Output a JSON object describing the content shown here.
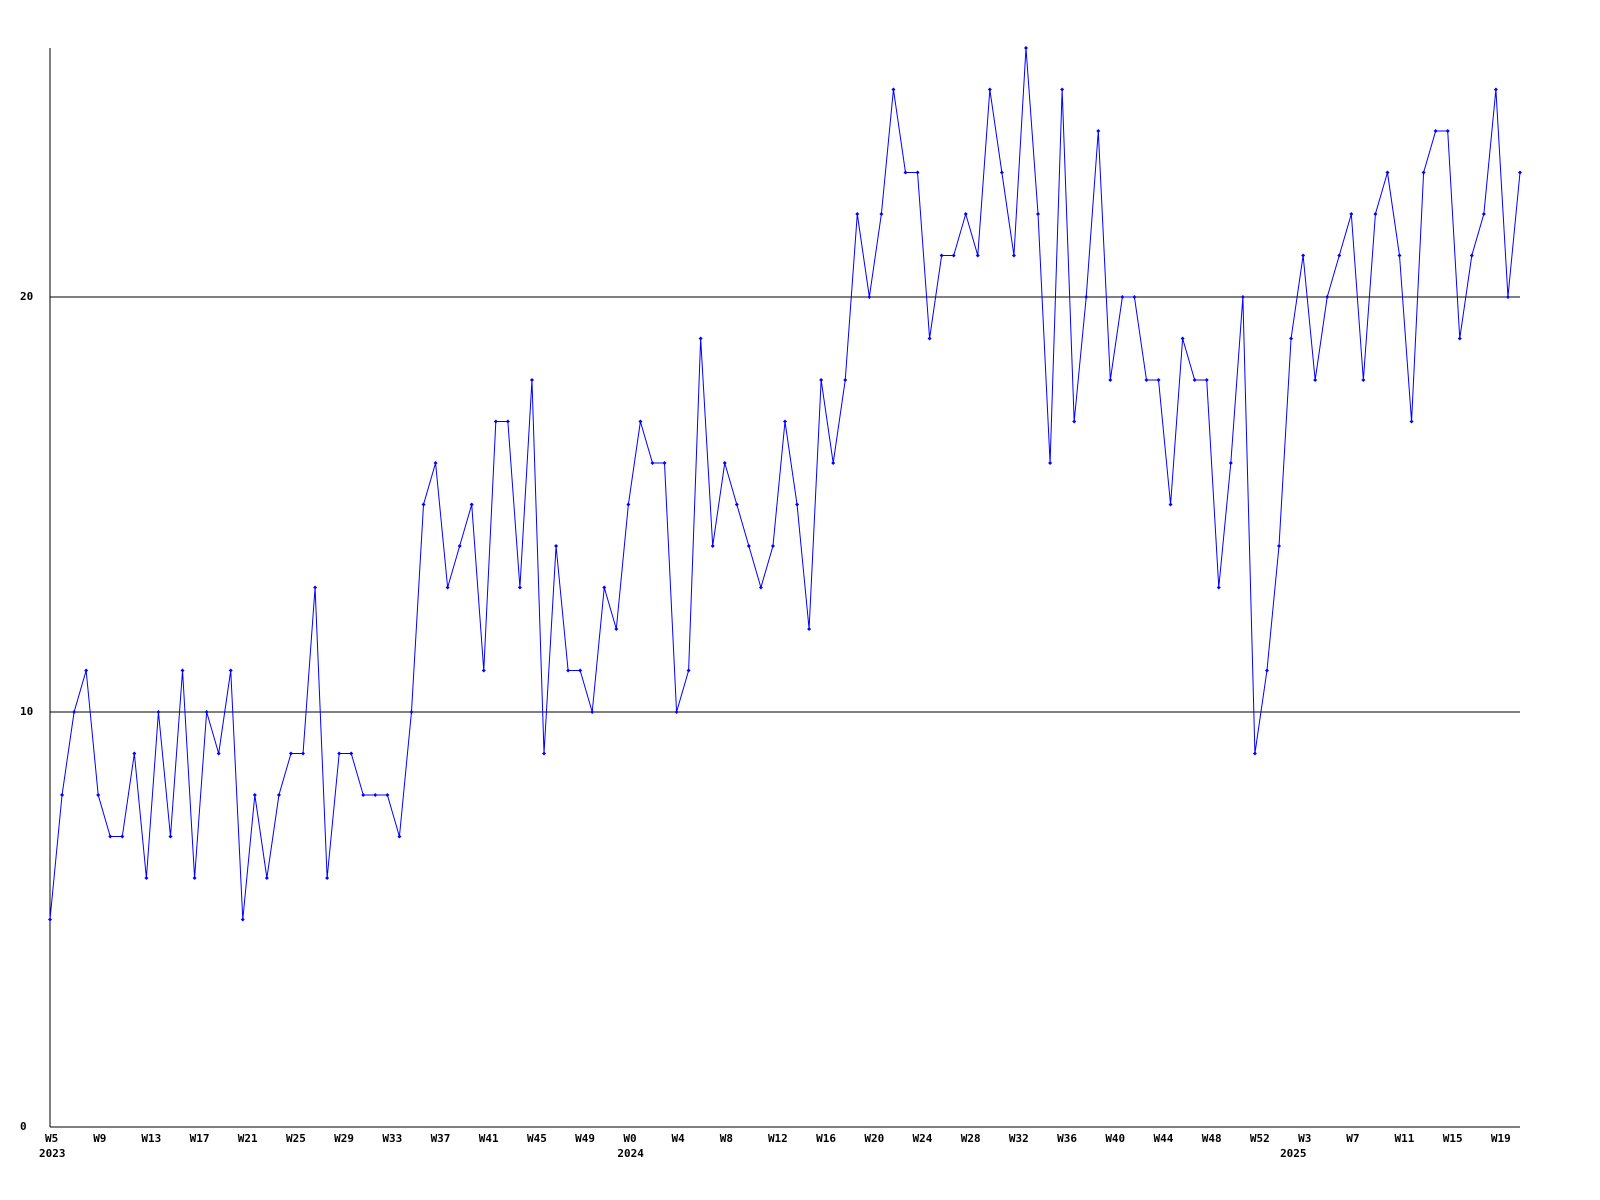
{
  "chart_data": {
    "type": "line",
    "categories": [
      "W5",
      null,
      null,
      null,
      "W9",
      null,
      null,
      null,
      "W13",
      null,
      null,
      null,
      "W17",
      null,
      null,
      null,
      "W21",
      null,
      null,
      null,
      "W25",
      null,
      null,
      null,
      "W29",
      null,
      null,
      null,
      "W33",
      null,
      null,
      null,
      "W37",
      null,
      null,
      null,
      "W41",
      null,
      null,
      null,
      "W45",
      null,
      null,
      null,
      "W49",
      null,
      null,
      null,
      "W0",
      null,
      null,
      null,
      "W4",
      null,
      null,
      null,
      "W8",
      null,
      null,
      null,
      "W12",
      null,
      null,
      null,
      "W16",
      null,
      null,
      null,
      "W20",
      null,
      null,
      null,
      "W24",
      null,
      null,
      null,
      "W28",
      null,
      null,
      null,
      "W32",
      null,
      null,
      null,
      "W36",
      null,
      null,
      null,
      "W40",
      null,
      null,
      null,
      "W44",
      null,
      null,
      null,
      "W48",
      null,
      null,
      null,
      "W52",
      null,
      null,
      null,
      "W3",
      null,
      null,
      null,
      "W7",
      null,
      null,
      null,
      "W11",
      null,
      null,
      null,
      "W15",
      null,
      null,
      null,
      "W19",
      null,
      null
    ],
    "year_labels": [
      "2023",
      null,
      null,
      null,
      null,
      null,
      null,
      null,
      null,
      null,
      null,
      null,
      null,
      null,
      null,
      null,
      null,
      null,
      null,
      null,
      null,
      null,
      null,
      null,
      null,
      null,
      null,
      null,
      null,
      null,
      null,
      null,
      null,
      null,
      null,
      null,
      null,
      null,
      null,
      null,
      null,
      null,
      null,
      null,
      null,
      null,
      null,
      null,
      "2024",
      null,
      null,
      null,
      null,
      null,
      null,
      null,
      null,
      null,
      null,
      null,
      null,
      null,
      null,
      null,
      null,
      null,
      null,
      null,
      null,
      null,
      null,
      null,
      null,
      null,
      null,
      null,
      null,
      null,
      null,
      null,
      null,
      null,
      null,
      null,
      null,
      null,
      null,
      null,
      null,
      null,
      null,
      null,
      null,
      null,
      null,
      null,
      null,
      null,
      null,
      null,
      null,
      null,
      null,
      "2025",
      null,
      null,
      null,
      null,
      null,
      null,
      null,
      null,
      null,
      null,
      null,
      null,
      null,
      null,
      null,
      null,
      null,
      null,
      null,
      null,
      null
    ],
    "series": [
      {
        "color": "#0000ff",
        "values": [
          5,
          8,
          10,
          11,
          8,
          7,
          7,
          9,
          6,
          10,
          7,
          11,
          6,
          10,
          9,
          11,
          5,
          8,
          6,
          8,
          9,
          9,
          13,
          6,
          9,
          9,
          8,
          8,
          8,
          7,
          10,
          15,
          16,
          13,
          14,
          15,
          11,
          17,
          17,
          13,
          18,
          9,
          14,
          11,
          11,
          10,
          13,
          12,
          15,
          17,
          16,
          16,
          10,
          11,
          19,
          14,
          16,
          15,
          14,
          13,
          14,
          17,
          15,
          12,
          18,
          16,
          18,
          22,
          20,
          22,
          25,
          23,
          23,
          19,
          21,
          21,
          22,
          21,
          25,
          23,
          21,
          26,
          22,
          16,
          25,
          17,
          20,
          24,
          18,
          20,
          20,
          18,
          18,
          15,
          19,
          18,
          18,
          13,
          16,
          20,
          9,
          11,
          14,
          19,
          21,
          18,
          20,
          21,
          22,
          18,
          22,
          23,
          21,
          17,
          23,
          24,
          24,
          19,
          21,
          22,
          25,
          20,
          23
        ]
      }
    ],
    "ylim": [
      0,
      26
    ],
    "yticks": [
      0,
      10,
      20
    ],
    "grid": true
  }
}
